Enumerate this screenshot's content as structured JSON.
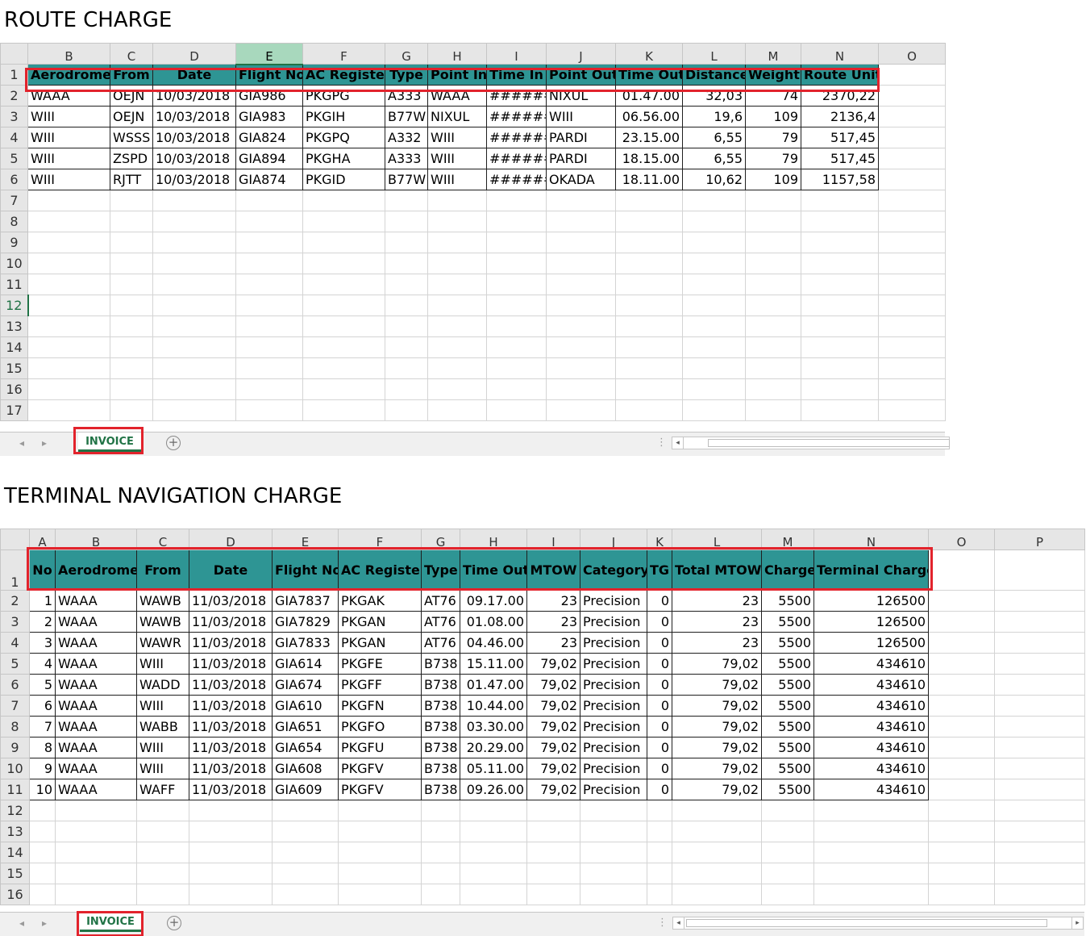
{
  "route": {
    "title": "ROUTE CHARGE",
    "col_letters": [
      "B",
      "C",
      "D",
      "E",
      "F",
      "G",
      "H",
      "I",
      "J",
      "K",
      "L",
      "M",
      "N",
      "O"
    ],
    "headers": [
      "Aerodrome",
      "From",
      "Date",
      "Flight No",
      "AC Register",
      "Type",
      "Point In",
      "Time In",
      "Point Out",
      "Time Out",
      "Distance",
      "Weight",
      "Route Unit"
    ],
    "rows": [
      [
        "WAAA",
        "OEJN",
        "10/03/2018",
        "GIA986",
        "PKGPG",
        "A333",
        "WAAA",
        "#######",
        "NIXUL",
        "01.47.00",
        "32,03",
        "74",
        "2370,22"
      ],
      [
        "WIII",
        "OEJN",
        "10/03/2018",
        "GIA983",
        "PKGIH",
        "B77W",
        "NIXUL",
        "#######",
        "WIII",
        "06.56.00",
        "19,6",
        "109",
        "2136,4"
      ],
      [
        "WIII",
        "WSSS",
        "10/03/2018",
        "GIA824",
        "PKGPQ",
        "A332",
        "WIII",
        "#######",
        "PARDI",
        "23.15.00",
        "6,55",
        "79",
        "517,45"
      ],
      [
        "WIII",
        "ZSPD",
        "10/03/2018",
        "GIA894",
        "PKGHA",
        "A333",
        "WIII",
        "#######",
        "PARDI",
        "18.15.00",
        "6,55",
        "79",
        "517,45"
      ],
      [
        "WIII",
        "RJTT",
        "10/03/2018",
        "GIA874",
        "PKGID",
        "B77W",
        "WIII",
        "#######",
        "OKADA",
        "18.11.00",
        "10,62",
        "109",
        "1157,58"
      ]
    ],
    "row_numbers": [
      "1",
      "2",
      "3",
      "4",
      "5",
      "6",
      "7",
      "8",
      "9",
      "10",
      "11",
      "12",
      "13",
      "14",
      "15",
      "16",
      "17"
    ],
    "sheet_tab": "INVOICE"
  },
  "terminal": {
    "title": "TERMINAL NAVIGATION CHARGE",
    "col_letters": [
      "A",
      "B",
      "C",
      "D",
      "E",
      "F",
      "G",
      "H",
      "I",
      "J",
      "K",
      "L",
      "M",
      "N",
      "O",
      "P"
    ],
    "headers": [
      "No",
      "Aerodrome",
      "From",
      "Date",
      "Flight No",
      "AC Register",
      "Type",
      "Time Out",
      "MTOW",
      "Category",
      "TG",
      "Total MTOW",
      "Charge",
      "Terminal Charge"
    ],
    "rows": [
      [
        "1",
        "WAAA",
        "WAWB",
        "11/03/2018",
        "GIA7837",
        "PKGAK",
        "AT76",
        "09.17.00",
        "23",
        "Precision",
        "0",
        "23",
        "5500",
        "126500"
      ],
      [
        "2",
        "WAAA",
        "WAWB",
        "11/03/2018",
        "GIA7829",
        "PKGAN",
        "AT76",
        "01.08.00",
        "23",
        "Precision",
        "0",
        "23",
        "5500",
        "126500"
      ],
      [
        "3",
        "WAAA",
        "WAWR",
        "11/03/2018",
        "GIA7833",
        "PKGAN",
        "AT76",
        "04.46.00",
        "23",
        "Precision",
        "0",
        "23",
        "5500",
        "126500"
      ],
      [
        "4",
        "WAAA",
        "WIII",
        "11/03/2018",
        "GIA614",
        "PKGFE",
        "B738",
        "15.11.00",
        "79,02",
        "Precision",
        "0",
        "79,02",
        "5500",
        "434610"
      ],
      [
        "5",
        "WAAA",
        "WADD",
        "11/03/2018",
        "GIA674",
        "PKGFF",
        "B738",
        "01.47.00",
        "79,02",
        "Precision",
        "0",
        "79,02",
        "5500",
        "434610"
      ],
      [
        "6",
        "WAAA",
        "WIII",
        "11/03/2018",
        "GIA610",
        "PKGFN",
        "B738",
        "10.44.00",
        "79,02",
        "Precision",
        "0",
        "79,02",
        "5500",
        "434610"
      ],
      [
        "7",
        "WAAA",
        "WABB",
        "11/03/2018",
        "GIA651",
        "PKGFO",
        "B738",
        "03.30.00",
        "79,02",
        "Precision",
        "0",
        "79,02",
        "5500",
        "434610"
      ],
      [
        "8",
        "WAAA",
        "WIII",
        "11/03/2018",
        "GIA654",
        "PKGFU",
        "B738",
        "20.29.00",
        "79,02",
        "Precision",
        "0",
        "79,02",
        "5500",
        "434610"
      ],
      [
        "9",
        "WAAA",
        "WIII",
        "11/03/2018",
        "GIA608",
        "PKGFV",
        "B738",
        "05.11.00",
        "79,02",
        "Precision",
        "0",
        "79,02",
        "5500",
        "434610"
      ],
      [
        "10",
        "WAAA",
        "WAFF",
        "11/03/2018",
        "GIA609",
        "PKGFV",
        "B738",
        "09.26.00",
        "79,02",
        "Precision",
        "0",
        "79,02",
        "5500",
        "434610"
      ]
    ],
    "row_numbers": [
      "1",
      "2",
      "3",
      "4",
      "5",
      "6",
      "7",
      "8",
      "9",
      "10",
      "11",
      "12",
      "13",
      "14",
      "15",
      "16"
    ],
    "sheet_tab": "INVOICE"
  },
  "colors": {
    "header_fill": "#2e9594",
    "highlight_box": "#e2232c",
    "excel_green": "#217346"
  }
}
